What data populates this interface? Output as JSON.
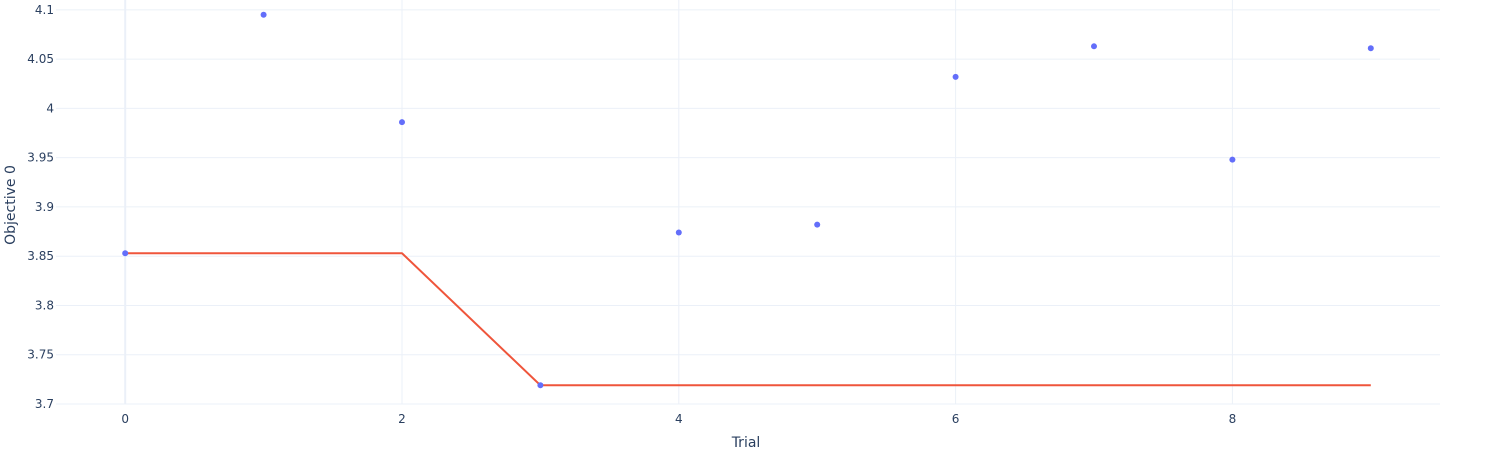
{
  "chart_data": {
    "type": "scatter",
    "title": "",
    "xlabel": "Trial",
    "ylabel": "Objective 0",
    "xlim": [
      -0.5,
      9.5
    ],
    "ylim": [
      3.7,
      4.11
    ],
    "x_ticks": [
      0,
      2,
      4,
      6,
      8
    ],
    "x_tick_labels": [
      "0",
      "2",
      "4",
      "6",
      "8"
    ],
    "y_ticks": [
      3.7,
      3.75,
      3.8,
      3.85,
      3.9,
      3.95,
      4.0,
      4.05,
      4.1
    ],
    "y_tick_labels": [
      "3.7",
      "3.75",
      "3.8",
      "3.85",
      "3.9",
      "3.95",
      "4",
      "4.05",
      "4.1"
    ],
    "grid": true,
    "legend": false,
    "series": [
      {
        "mode": "markers",
        "color": "#636efa",
        "x": [
          0,
          1,
          2,
          3,
          4,
          5,
          6,
          7,
          8,
          9
        ],
        "y": [
          3.853,
          4.095,
          3.986,
          3.719,
          3.874,
          3.882,
          4.032,
          4.063,
          3.948,
          4.061
        ]
      },
      {
        "mode": "lines",
        "color": "#ef553b",
        "x": [
          0,
          1,
          2,
          3,
          4,
          5,
          6,
          7,
          8,
          9
        ],
        "y": [
          3.853,
          3.853,
          3.853,
          3.719,
          3.719,
          3.719,
          3.719,
          3.719,
          3.719,
          3.719
        ]
      }
    ]
  }
}
